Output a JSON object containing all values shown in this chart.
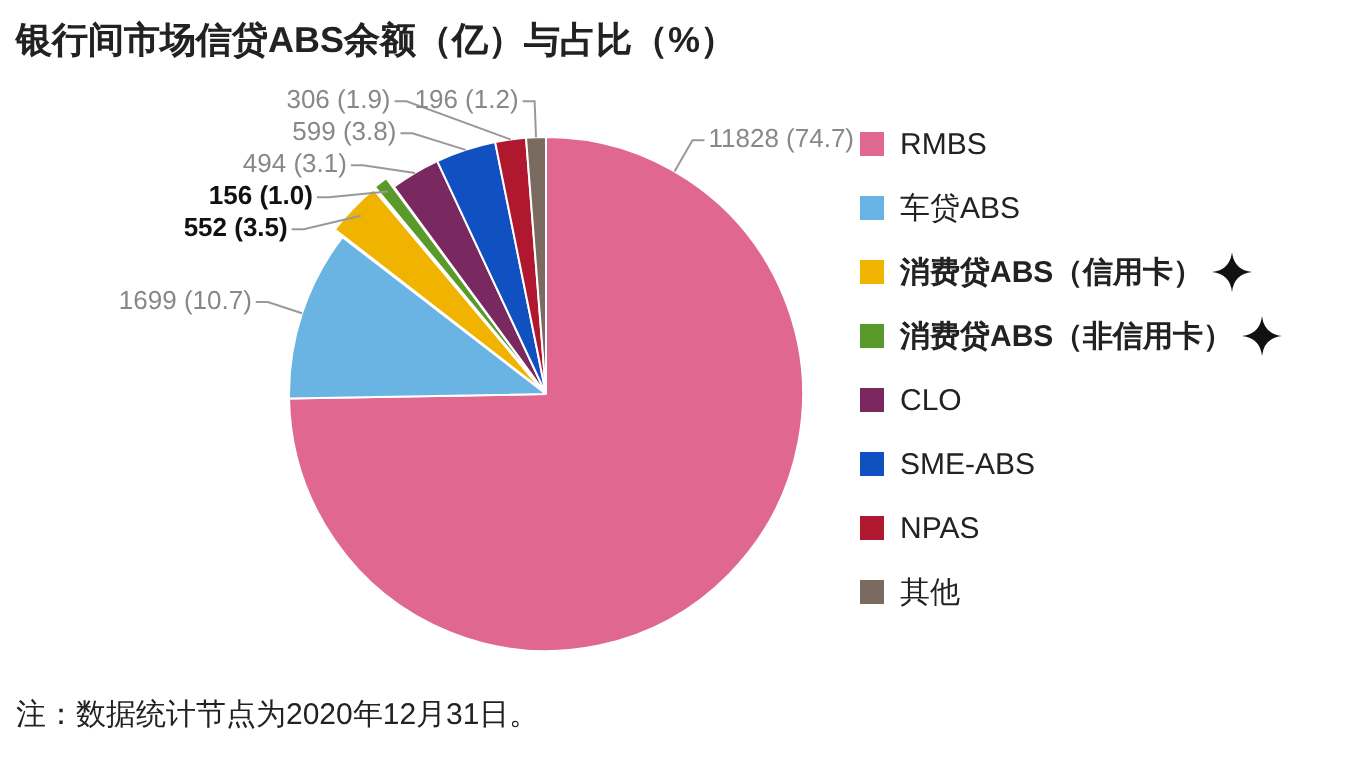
{
  "chart_data": {
    "type": "pie",
    "title": "银行间市场信贷ABS余额（亿）与占比（%）",
    "categories": [
      "RMBS",
      "车贷ABS",
      "消费贷ABS（信用卡）",
      "消费贷ABS（非信用卡）",
      "CLO",
      "SME-ABS",
      "NPAS",
      "其他"
    ],
    "values": [
      11828,
      1699,
      552,
      156,
      494,
      599,
      306,
      196
    ],
    "colors": [
      "#e06890",
      "#6ab4e4",
      "#f0b400",
      "#5a9a2a",
      "#7a2860",
      "#1050c0",
      "#b01830",
      "#7a6a60"
    ],
    "value_labels": [
      "11828 (74.7)",
      "1699 (10.7)",
      "552 (3.5)",
      "156 (1.0)",
      "494 (3.1)",
      "599 (3.8)",
      "306 (1.9)",
      "196 (1.2)"
    ],
    "legend": "right",
    "annotations": [
      "注：数据统计节点为2020年12月31日。"
    ]
  }
}
